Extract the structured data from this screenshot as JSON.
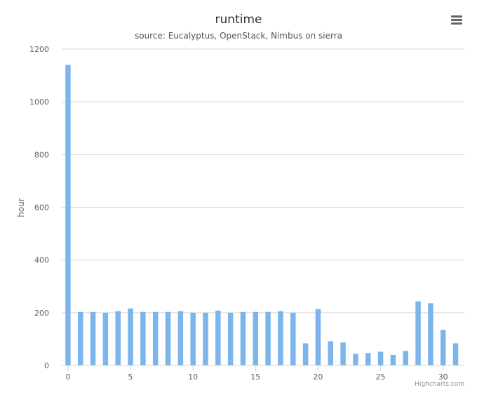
{
  "chart_data": {
    "type": "bar",
    "title": "runtime",
    "subtitle": "source: Eucalyptus, OpenStack, Nimbus on sierra",
    "xlabel": "",
    "ylabel": "hour",
    "x": [
      0,
      1,
      2,
      3,
      4,
      5,
      6,
      7,
      8,
      9,
      10,
      11,
      12,
      13,
      14,
      15,
      16,
      17,
      18,
      19,
      20,
      21,
      22,
      23,
      24,
      25,
      26,
      27,
      28,
      29,
      30,
      31
    ],
    "values": [
      1140,
      203,
      203,
      200,
      206,
      216,
      203,
      203,
      203,
      206,
      200,
      200,
      208,
      200,
      203,
      203,
      203,
      206,
      200,
      84,
      214,
      92,
      87,
      44,
      47,
      52,
      40,
      55,
      243,
      236,
      135,
      84
    ],
    "xlim": [
      -0.5,
      31.7
    ],
    "ylim": [
      0,
      1200
    ],
    "xticks": [
      0,
      5,
      10,
      15,
      20,
      25,
      30
    ],
    "yticks": [
      0,
      200,
      400,
      600,
      800,
      1000,
      1200
    ],
    "grid": true,
    "legend": "none",
    "bar_color": "#7cb5ec",
    "credits": "Highcharts.com"
  }
}
